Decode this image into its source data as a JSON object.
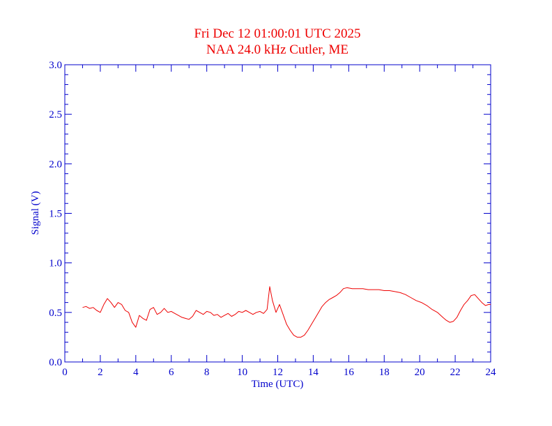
{
  "chart_data": {
    "type": "line",
    "title": "Fri Dec 12 01:00:01 UTC 2025",
    "subtitle": "NAA 24.0 kHz Cutler, ME",
    "xlabel": "Time (UTC)",
    "ylabel": "Signal (V)",
    "xlim": [
      0,
      24
    ],
    "ylim": [
      0,
      3.0
    ],
    "x_ticks": [
      "0",
      "2",
      "4",
      "6",
      "8",
      "10",
      "12",
      "14",
      "16",
      "18",
      "20",
      "22",
      "24"
    ],
    "y_ticks": [
      "0.0",
      "0.5",
      "1.0",
      "1.5",
      "2.0",
      "2.5",
      "3.0"
    ],
    "grid": false,
    "colors": {
      "axes": "#0000cc",
      "line": "#ee0000",
      "title": "#ee0000"
    },
    "series": [
      {
        "x": [
          1.0,
          1.2,
          1.4,
          1.6,
          1.8,
          2.0,
          2.2,
          2.4,
          2.6,
          2.8,
          3.0,
          3.2,
          3.4,
          3.6,
          3.8,
          4.0,
          4.2,
          4.4,
          4.6,
          4.8,
          5.0,
          5.2,
          5.4,
          5.6,
          5.8,
          6.0,
          6.2,
          6.4,
          6.6,
          6.8,
          7.0,
          7.2,
          7.4,
          7.6,
          7.8,
          8.0,
          8.2,
          8.4,
          8.6,
          8.8,
          9.0,
          9.2,
          9.4,
          9.6,
          9.8,
          10.0,
          10.2,
          10.4,
          10.6,
          10.8,
          11.0,
          11.2,
          11.4,
          11.55,
          11.7,
          11.9,
          12.1,
          12.3,
          12.5,
          12.7,
          12.9,
          13.1,
          13.3,
          13.5,
          13.7,
          13.9,
          14.1,
          14.3,
          14.5,
          14.7,
          14.9,
          15.1,
          15.3,
          15.5,
          15.7,
          15.9,
          16.2,
          16.5,
          16.8,
          17.1,
          17.4,
          17.7,
          18.0,
          18.3,
          18.6,
          18.9,
          19.2,
          19.5,
          19.8,
          20.1,
          20.4,
          20.7,
          21.0,
          21.3,
          21.5,
          21.7,
          21.9,
          22.1,
          22.3,
          22.5,
          22.7,
          22.9,
          23.1,
          23.3,
          23.5,
          23.7,
          23.9,
          24.0
        ],
        "values": [
          0.55,
          0.56,
          0.54,
          0.55,
          0.52,
          0.5,
          0.58,
          0.64,
          0.6,
          0.55,
          0.6,
          0.58,
          0.52,
          0.5,
          0.4,
          0.35,
          0.47,
          0.44,
          0.42,
          0.53,
          0.55,
          0.48,
          0.5,
          0.54,
          0.5,
          0.51,
          0.49,
          0.47,
          0.45,
          0.44,
          0.43,
          0.46,
          0.52,
          0.5,
          0.48,
          0.51,
          0.5,
          0.47,
          0.48,
          0.45,
          0.47,
          0.49,
          0.46,
          0.48,
          0.51,
          0.5,
          0.52,
          0.5,
          0.48,
          0.5,
          0.51,
          0.49,
          0.53,
          0.76,
          0.62,
          0.5,
          0.58,
          0.48,
          0.38,
          0.32,
          0.27,
          0.25,
          0.25,
          0.27,
          0.32,
          0.38,
          0.44,
          0.5,
          0.56,
          0.6,
          0.63,
          0.65,
          0.67,
          0.7,
          0.74,
          0.75,
          0.74,
          0.74,
          0.74,
          0.73,
          0.73,
          0.73,
          0.72,
          0.72,
          0.71,
          0.7,
          0.68,
          0.65,
          0.62,
          0.6,
          0.57,
          0.53,
          0.5,
          0.45,
          0.42,
          0.4,
          0.41,
          0.45,
          0.52,
          0.58,
          0.62,
          0.67,
          0.68,
          0.64,
          0.6,
          0.57,
          0.58,
          0.58
        ]
      }
    ]
  }
}
